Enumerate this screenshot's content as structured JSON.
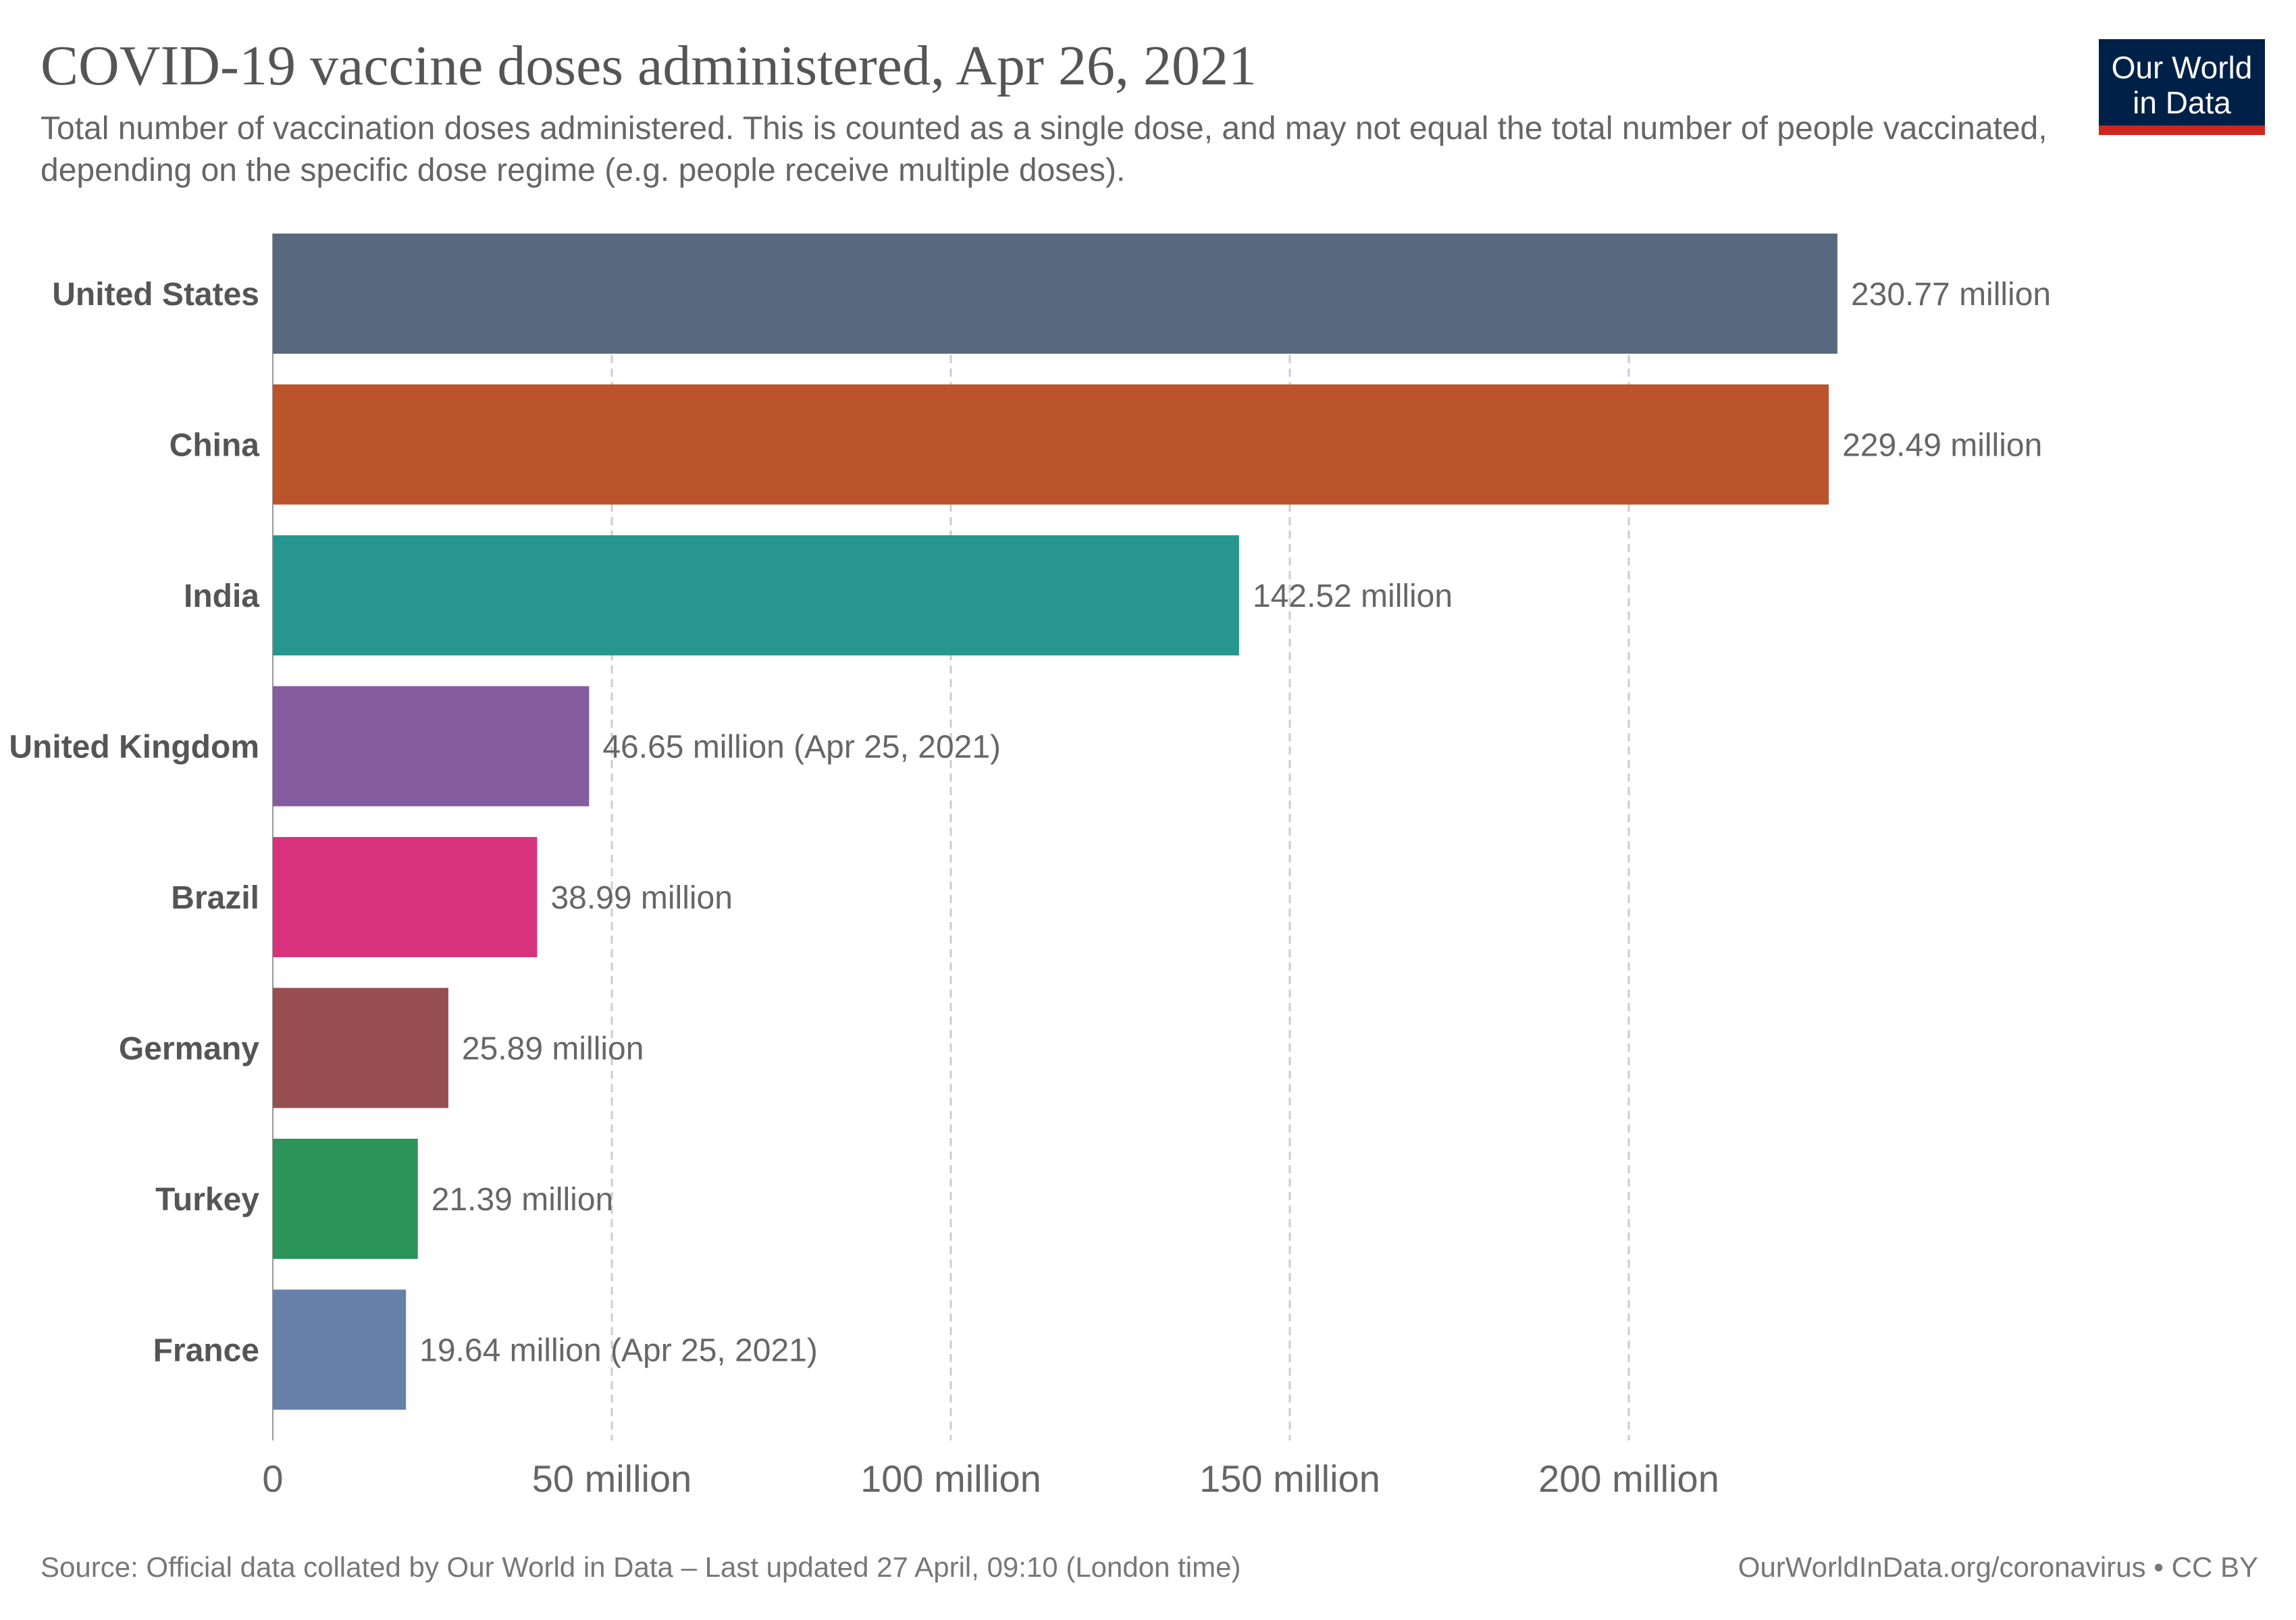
{
  "header": {
    "title": "COVID-19 vaccine doses administered, Apr 26, 2021",
    "subtitle": "Total number of vaccination doses administered. This is counted as a single dose, and may not equal the total number of people vaccinated, depending on the specific dose regime (e.g. people receive multiple doses)."
  },
  "logo": {
    "line1": "Our World",
    "line2": "in Data",
    "bg_color": "#002147",
    "accent_color": "#ce261e"
  },
  "footer": {
    "source": "Source: Official data collated by Our World in Data – Last updated 27 April, 09:10 (London time)",
    "link": "OurWorldInData.org/coronavirus • CC BY"
  },
  "chart_data": {
    "type": "bar",
    "orientation": "horizontal",
    "title": "COVID-19 vaccine doses administered, Apr 26, 2021",
    "xlabel": "",
    "ylabel": "",
    "xlim": [
      0,
      250000000
    ],
    "grid": true,
    "legend": "none",
    "x_ticks": [
      {
        "value": 0,
        "label": "0"
      },
      {
        "value": 50000000,
        "label": "50 million"
      },
      {
        "value": 100000000,
        "label": "100 million"
      },
      {
        "value": 150000000,
        "label": "150 million"
      },
      {
        "value": 200000000,
        "label": "200 million"
      }
    ],
    "categories": [
      "United States",
      "China",
      "India",
      "United Kingdom",
      "Brazil",
      "Germany",
      "Turkey",
      "France"
    ],
    "values": [
      230770000,
      229490000,
      142520000,
      46650000,
      38990000,
      25890000,
      21390000,
      19640000
    ],
    "value_labels": [
      "230.77 million",
      "229.49 million",
      "142.52 million",
      "46.65 million (Apr 25, 2021)",
      "38.99 million",
      "25.89 million",
      "21.39 million",
      "19.64 million (Apr 25, 2021)"
    ],
    "colors": [
      "#58697f",
      "#bb532b",
      "#27968f",
      "#855c9f",
      "#d8327d",
      "#974f52",
      "#2c9459",
      "#6680aa"
    ]
  }
}
